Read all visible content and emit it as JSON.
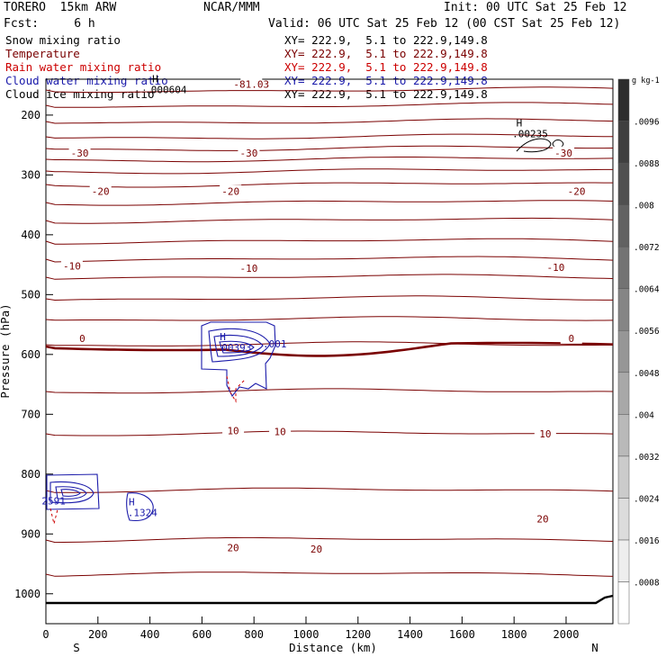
{
  "header": {
    "model": "TORERO  15km ARW",
    "forecast": "Fcst:     6 h",
    "center": "NCAR/MMM",
    "init": "Init: 00 UTC Sat 25 Feb 12",
    "valid": "Valid: 06 UTC Sat 25 Feb 12 (00 CST Sat 25 Feb 12)"
  },
  "fields": [
    {
      "name": "Snow mixing ratio",
      "xy": "XY= 222.9,  5.1 to 222.9,149.8",
      "color": "#000000"
    },
    {
      "name": "Temperature",
      "xy": "XY= 222.9,  5.1 to 222.9,149.8",
      "color": "#7a0000"
    },
    {
      "name": "Rain water mixing ratio",
      "xy": "XY= 222.9,  5.1 to 222.9,149.8",
      "color": "#cc0000"
    },
    {
      "name": "Cloud water mixing ratio",
      "xy": "XY= 222.9,  5.1 to 222.9,149.8",
      "color": "#1a1aaa"
    },
    {
      "name": "Cloud ice mixing ratio",
      "xy": "XY= 222.9,  5.1 to 222.9,149.8",
      "color": "#000000"
    }
  ],
  "chart_data": {
    "type": "contour",
    "xlabel": "Distance (km)",
    "ylabel": "Pressure (hPa)",
    "xlim": [
      0,
      2180
    ],
    "ylim": [
      1050,
      140
    ],
    "x_ticks": [
      0,
      200,
      400,
      600,
      800,
      1000,
      1200,
      1400,
      1600,
      1800,
      2000
    ],
    "y_ticks": [
      200,
      300,
      400,
      500,
      600,
      700,
      800,
      900,
      1000
    ],
    "x_end_labels": {
      "left": "S",
      "right": "N"
    },
    "colorbar": {
      "unit": "g kg-1",
      "tick_labels": [
        ".0008",
        ".0016",
        ".0024",
        ".0032",
        ".004",
        ".0048",
        ".0056",
        ".0064",
        ".0072",
        ".008",
        ".0088",
        ".0096"
      ]
    },
    "temperature_labels": [
      {
        "text": "-81.03",
        "x": 790,
        "p": 148
      },
      {
        "text": "-30",
        "x": 130,
        "p": 263
      },
      {
        "text": "-30",
        "x": 780,
        "p": 263
      },
      {
        "text": "-30",
        "x": 1990,
        "p": 263
      },
      {
        "text": "-20",
        "x": 210,
        "p": 327
      },
      {
        "text": "-20",
        "x": 710,
        "p": 327
      },
      {
        "text": "-20",
        "x": 2040,
        "p": 327
      },
      {
        "text": "-10",
        "x": 100,
        "p": 452
      },
      {
        "text": "-10",
        "x": 780,
        "p": 456
      },
      {
        "text": "-10",
        "x": 1960,
        "p": 454
      },
      {
        "text": "0",
        "x": 140,
        "p": 573
      },
      {
        "text": "0",
        "x": 2020,
        "p": 573
      },
      {
        "text": "10",
        "x": 720,
        "p": 727
      },
      {
        "text": "10",
        "x": 900,
        "p": 729
      },
      {
        "text": "10",
        "x": 1920,
        "p": 733
      },
      {
        "text": "20",
        "x": 720,
        "p": 923
      },
      {
        "text": "20",
        "x": 1040,
        "p": 925
      },
      {
        "text": "20",
        "x": 1910,
        "p": 875
      }
    ],
    "extrema_labels": [
      {
        "marker": "H",
        "value": ".000604",
        "x": 420,
        "p": 148,
        "color": "#000000"
      },
      {
        "marker": "H",
        "value": ".00235",
        "x": 1820,
        "p": 222,
        "color": "#000000"
      },
      {
        "marker": "H",
        "value": ".00393",
        "x": 680,
        "p": 579,
        "color": "#1a1aaa"
      },
      {
        "marker": "H",
        "value": ".1324",
        "x": 330,
        "p": 855,
        "color": "#1a1aaa"
      }
    ],
    "cloud_labels": [
      {
        "text": ".001",
        "x": 880,
        "p": 582
      },
      {
        "text": "2591",
        "x": 30,
        "p": 845
      }
    ]
  }
}
